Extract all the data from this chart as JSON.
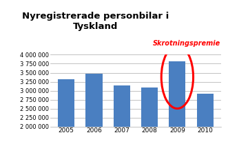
{
  "title": "Nyregistrerade personbilar i\nTyskland",
  "years": [
    2005,
    2006,
    2007,
    2008,
    2009,
    2010
  ],
  "values": [
    3310000,
    3470000,
    3150000,
    3090000,
    3810000,
    2910000
  ],
  "bar_color": "#4a7fc1",
  "ylim": [
    2000000,
    4000000
  ],
  "yticks": [
    2000000,
    2250000,
    2500000,
    2750000,
    3000000,
    3250000,
    3500000,
    3750000,
    4000000
  ],
  "annotation_text": "Skrotningspremie",
  "annotation_color": "red",
  "background_color": "#ffffff"
}
